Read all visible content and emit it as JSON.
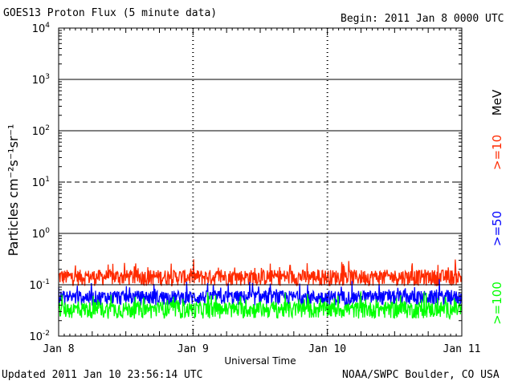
{
  "header": {
    "title": "GOES13 Proton Flux (5 minute data)",
    "begin": "Begin: 2011 Jan 8 0000 UTC"
  },
  "footer": {
    "updated": "Updated 2011 Jan 10 23:56:14 UTC",
    "credit": "NOAA/SWPC Boulder, CO USA"
  },
  "chart_data": {
    "type": "line",
    "title": "GOES13 Proton Flux (5 minute data)",
    "xlabel": "Universal Time",
    "ylabel": "Particles cm⁻²s⁻¹sr⁻¹",
    "yscale": "log",
    "ylim": [
      0.01,
      10000
    ],
    "y_ticks": [
      {
        "base": "10",
        "exp": "-2"
      },
      {
        "base": "10",
        "exp": "-1"
      },
      {
        "base": "10",
        "exp": "0"
      },
      {
        "base": "10",
        "exp": "1"
      },
      {
        "base": "10",
        "exp": "2"
      },
      {
        "base": "10",
        "exp": "3"
      },
      {
        "base": "10",
        "exp": "4"
      }
    ],
    "x_ticks": [
      "Jan 8",
      "Jan 9",
      "Jan 10",
      "Jan 11"
    ],
    "grid": true,
    "unit_label": "MeV",
    "series": [
      {
        "name": ">=10",
        "color": "#ff2a00",
        "baseline": 0.145,
        "spread": 0.35,
        "spike": 0.45
      },
      {
        "name": ">=50",
        "color": "#0000ff",
        "baseline": 0.058,
        "spread": 0.32,
        "spike": 0.16
      },
      {
        "name": ">=100",
        "color": "#00ff00",
        "baseline": 0.034,
        "spread": 0.36,
        "spike": 0.09
      }
    ]
  }
}
